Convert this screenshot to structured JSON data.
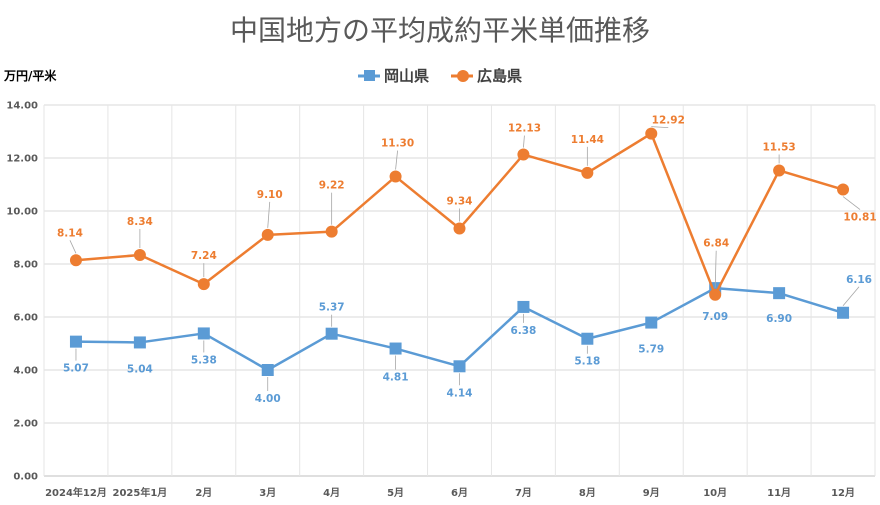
{
  "chart_data": {
    "type": "line",
    "title": "中国地方の平均成約平米単価推移",
    "ylabel": "万円/平米",
    "xlabel": "",
    "ylim": [
      0,
      14
    ],
    "yticks": [
      "0.00",
      "2.00",
      "4.00",
      "6.00",
      "8.00",
      "10.00",
      "12.00",
      "14.00"
    ],
    "grid": true,
    "legend": "top",
    "categories": [
      "2024年12月",
      "2025年1月",
      "2月",
      "3月",
      "4月",
      "5月",
      "6月",
      "7月",
      "8月",
      "9月",
      "10月",
      "11月",
      "12月"
    ],
    "series": [
      {
        "name": "岡山県",
        "color": "#5B9BD5",
        "marker": "square",
        "values": [
          5.07,
          5.04,
          5.38,
          4.0,
          5.37,
          4.81,
          4.14,
          6.38,
          5.18,
          5.79,
          7.09,
          6.9,
          6.16
        ],
        "labels": [
          "5.07",
          "5.04",
          "5.38",
          "4.00",
          "5.37",
          "4.81",
          "4.14",
          "6.38",
          "5.18",
          "5.79",
          "7.09",
          "6.90",
          "6.16"
        ]
      },
      {
        "name": "広島県",
        "color": "#ED7D31",
        "marker": "circle",
        "values": [
          8.14,
          8.34,
          7.24,
          9.1,
          9.22,
          11.3,
          9.34,
          12.13,
          11.44,
          12.92,
          6.84,
          11.53,
          10.81
        ],
        "labels": [
          "8.14",
          "8.34",
          "7.24",
          "9.10",
          "9.22",
          "11.30",
          "9.34",
          "12.13",
          "11.44",
          "12.92",
          "6.84",
          "11.53",
          "10.81"
        ]
      }
    ]
  }
}
